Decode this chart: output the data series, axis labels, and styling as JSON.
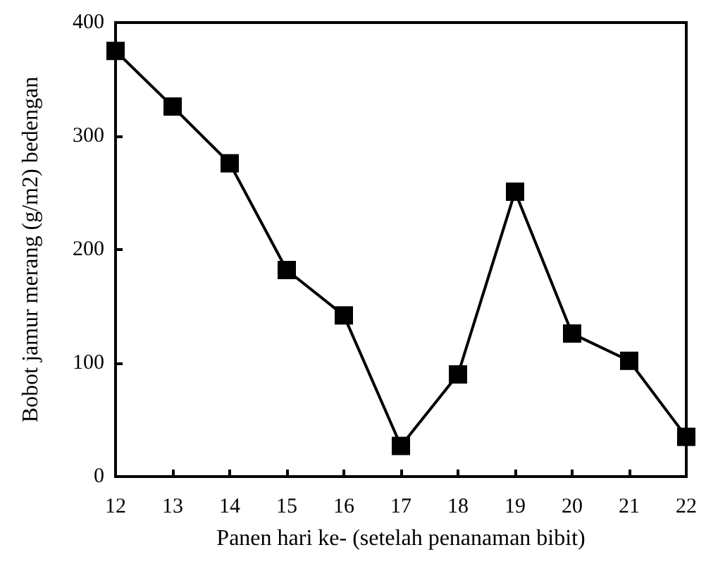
{
  "chart_data": {
    "type": "line",
    "xlabel": "Panen hari ke- (setelah penanaman bibit)",
    "ylabel": "Bobot jamur merang (g/m2) bedengan",
    "categories": [
      "12",
      "13",
      "14",
      "15",
      "16",
      "17",
      "18",
      "19",
      "20",
      "21",
      "22"
    ],
    "series": [
      {
        "color": "#000000",
        "values": [
          375,
          326,
          276,
          182,
          142,
          27,
          90,
          251,
          126,
          102,
          35
        ]
      }
    ],
    "ylim": [
      0,
      400
    ],
    "yticks": [
      0,
      100,
      200,
      300,
      400
    ],
    "grid": false,
    "marker": "square",
    "line_style": "solid"
  }
}
